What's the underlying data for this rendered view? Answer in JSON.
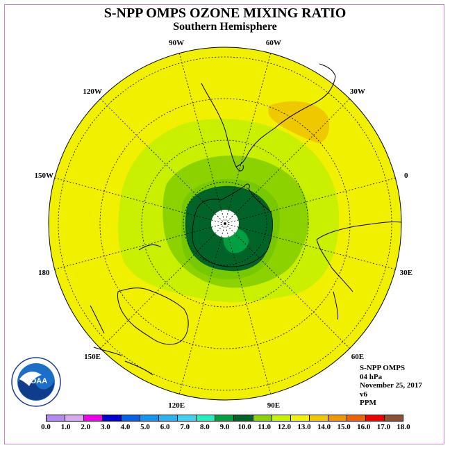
{
  "title": "S-NPP OMPS OZONE MIXING RATIO",
  "subtitle": "Southern Hemisphere",
  "logo_text": "NOAA",
  "longitude_labels": [
    "90W",
    "60W",
    "30W",
    "0",
    "30E",
    "60E",
    "90E",
    "120E",
    "150E",
    "180",
    "150W",
    "120W"
  ],
  "info": {
    "line1": "S-NPP OMPS",
    "line2": "04 hPa",
    "line3": "November 25, 2017",
    "line4": "v6",
    "line5": "PPM"
  },
  "colorbar": {
    "labels": [
      "0.0",
      "1.0",
      "2.0",
      "3.0",
      "4.0",
      "5.0",
      "6.0",
      "7.0",
      "8.0",
      "9.0",
      "10.0",
      "11.0",
      "12.0",
      "13.0",
      "14.0",
      "15.0",
      "16.0",
      "17.0",
      "18.0"
    ],
    "colors": [
      "#b48aee",
      "#d9a8f0",
      "#ee00ee",
      "#0000d0",
      "#0064e8",
      "#1496f0",
      "#28b4f0",
      "#40d0f0",
      "#20f0c0",
      "#00a040",
      "#006428",
      "#8cd200",
      "#c8f000",
      "#f0f000",
      "#f0c800",
      "#f09600",
      "#f06400",
      "#f00000",
      "#8c5032"
    ]
  },
  "map_colors": {
    "ring_13_14": "#f0f000",
    "ring_12_13": "#c8f000",
    "ring_11_12": "#8cd200",
    "ring_10_11": "#78c800",
    "ring_9_10": "#006428",
    "ring_8_9": "#00a040",
    "patch_14_15": "#f0c800",
    "pole_missing": "#ffffff"
  }
}
